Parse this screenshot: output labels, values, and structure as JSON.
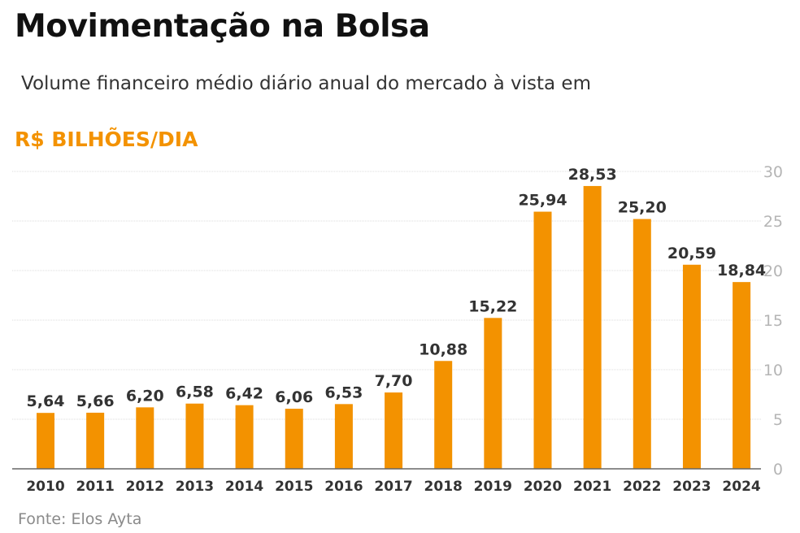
{
  "title": "Movimentação na Bolsa",
  "subtitle": "Volume financeiro médio diário anual do mercado à vista em",
  "unit_label": "R$ BILHÕES/DIA",
  "source": "Fonte: Elos Ayta",
  "colors": {
    "bar": "#f39200",
    "accent": "#f39200",
    "grid": "#dddddd",
    "axis": "#666666"
  },
  "chart_data": {
    "type": "bar",
    "title": "Movimentação na Bolsa",
    "subtitle": "Volume financeiro médio diário anual do mercado à vista em R$ bilhões/dia",
    "xlabel": "",
    "ylabel": "R$ BILHÕES/DIA",
    "categories": [
      "2010",
      "2011",
      "2012",
      "2013",
      "2014",
      "2015",
      "2016",
      "2017",
      "2018",
      "2019",
      "2020",
      "2021",
      "2022",
      "2023",
      "2024"
    ],
    "values": [
      5.64,
      5.66,
      6.2,
      6.58,
      6.42,
      6.06,
      6.53,
      7.7,
      10.88,
      15.22,
      25.94,
      28.53,
      25.2,
      20.59,
      18.84
    ],
    "value_labels": [
      "5,64",
      "5,66",
      "6,20",
      "6,58",
      "6,42",
      "6,06",
      "6,53",
      "7,70",
      "10,88",
      "15,22",
      "25,94",
      "28,53",
      "25,20",
      "20,59",
      "18,84"
    ],
    "ylim": [
      0,
      30
    ],
    "yticks": [
      0,
      5,
      10,
      15,
      20,
      25,
      30
    ],
    "y_axis_side": "right",
    "grid": true,
    "legend": "none"
  }
}
